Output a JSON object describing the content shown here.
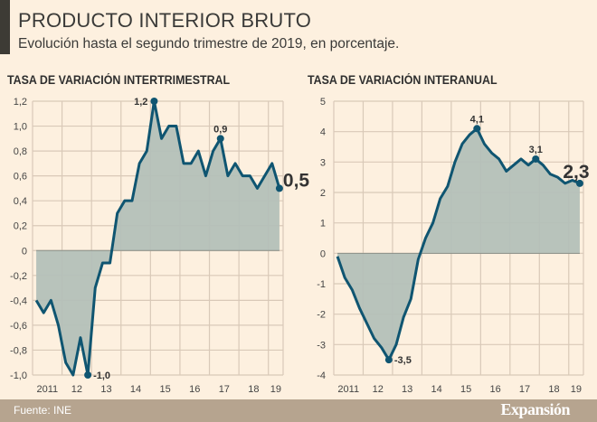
{
  "title": "PRODUCTO INTERIOR BRUTO",
  "subtitle": "Evolución hasta el segundo trimestre de 2019, en porcentaje.",
  "footer": {
    "source": "Fuente: INE",
    "brand": "Expansión"
  },
  "colors": {
    "background": "#fdf0df",
    "line": "#0f5571",
    "area": "#b4c0b8",
    "grid": "#d9c9b8",
    "footer": "#b6a48f"
  },
  "chart_data": [
    {
      "type": "area",
      "title": "TASA DE VARIACIÓN INTERTRIMESTRAL",
      "x_tick_labels": [
        "2011",
        "12",
        "13",
        "14",
        "15",
        "16",
        "17",
        "18",
        "19"
      ],
      "y_tick_labels": [
        "1,2",
        "1,0",
        "0,8",
        "0,6",
        "0,4",
        "0,2",
        "0",
        "-0,2",
        "-0,4",
        "-0,6",
        "-0,8",
        "-1,0"
      ],
      "y_ticks": [
        1.2,
        1.0,
        0.8,
        0.6,
        0.4,
        0.2,
        0,
        -0.2,
        -0.4,
        -0.6,
        -0.8,
        -1.0
      ],
      "ylim": [
        -1.0,
        1.2
      ],
      "grid": true,
      "x": [
        "2011-T1",
        "2011-T2",
        "2011-T3",
        "2011-T4",
        "2012-T1",
        "2012-T2",
        "2012-T3",
        "2012-T4",
        "2013-T1",
        "2013-T2",
        "2013-T3",
        "2013-T4",
        "2014-T1",
        "2014-T2",
        "2014-T3",
        "2014-T4",
        "2015-T1",
        "2015-T2",
        "2015-T3",
        "2015-T4",
        "2016-T1",
        "2016-T2",
        "2016-T3",
        "2016-T4",
        "2017-T1",
        "2017-T2",
        "2017-T3",
        "2017-T4",
        "2018-T1",
        "2018-T2",
        "2018-T3",
        "2018-T4",
        "2019-T1",
        "2019-T2"
      ],
      "values": [
        -0.4,
        -0.5,
        -0.4,
        -0.6,
        -0.9,
        -1.0,
        -0.7,
        -1.0,
        -0.3,
        -0.1,
        -0.1,
        0.3,
        0.4,
        0.4,
        0.7,
        0.8,
        1.2,
        0.9,
        1.0,
        1.0,
        0.7,
        0.7,
        0.8,
        0.6,
        0.8,
        0.9,
        0.6,
        0.7,
        0.6,
        0.6,
        0.5,
        0.6,
        0.7,
        0.5
      ],
      "annotations": [
        {
          "index": 7,
          "label": "-1,0",
          "pos": "right"
        },
        {
          "index": 16,
          "label": "1,2",
          "pos": "left"
        },
        {
          "index": 25,
          "label": "0,9",
          "pos": "top"
        },
        {
          "index": 33,
          "label": "0,5",
          "pos": "big"
        }
      ]
    },
    {
      "type": "area",
      "title": "TASA DE VARIACIÓN INTERANUAL",
      "x_tick_labels": [
        "2011",
        "12",
        "13",
        "14",
        "15",
        "16",
        "17",
        "18",
        "19"
      ],
      "y_tick_labels": [
        "5",
        "4",
        "3",
        "2",
        "1",
        "0",
        "-1",
        "-2",
        "-3",
        "-4"
      ],
      "y_ticks": [
        5,
        4,
        3,
        2,
        1,
        0,
        -1,
        -2,
        -3,
        -4
      ],
      "ylim": [
        -4,
        5
      ],
      "grid": true,
      "x": [
        "2011-T1",
        "2011-T2",
        "2011-T3",
        "2011-T4",
        "2012-T1",
        "2012-T2",
        "2012-T3",
        "2012-T4",
        "2013-T1",
        "2013-T2",
        "2013-T3",
        "2013-T4",
        "2014-T1",
        "2014-T2",
        "2014-T3",
        "2014-T4",
        "2015-T1",
        "2015-T2",
        "2015-T3",
        "2015-T4",
        "2016-T1",
        "2016-T2",
        "2016-T3",
        "2016-T4",
        "2017-T1",
        "2017-T2",
        "2017-T3",
        "2017-T4",
        "2018-T1",
        "2018-T2",
        "2018-T3",
        "2018-T4",
        "2019-T1",
        "2019-T2"
      ],
      "values": [
        -0.1,
        -0.8,
        -1.2,
        -1.8,
        -2.3,
        -2.8,
        -3.1,
        -3.5,
        -3.0,
        -2.1,
        -1.5,
        -0.2,
        0.5,
        1.0,
        1.8,
        2.2,
        3.0,
        3.6,
        3.9,
        4.1,
        3.6,
        3.3,
        3.1,
        2.7,
        2.9,
        3.1,
        2.9,
        3.1,
        2.9,
        2.6,
        2.5,
        2.3,
        2.4,
        2.3
      ],
      "annotations": [
        {
          "index": 7,
          "label": "-3,5",
          "pos": "right"
        },
        {
          "index": 19,
          "label": "4,1",
          "pos": "top"
        },
        {
          "index": 27,
          "label": "3,1",
          "pos": "top"
        },
        {
          "index": 33,
          "label": "2,3",
          "pos": "big"
        }
      ]
    }
  ]
}
